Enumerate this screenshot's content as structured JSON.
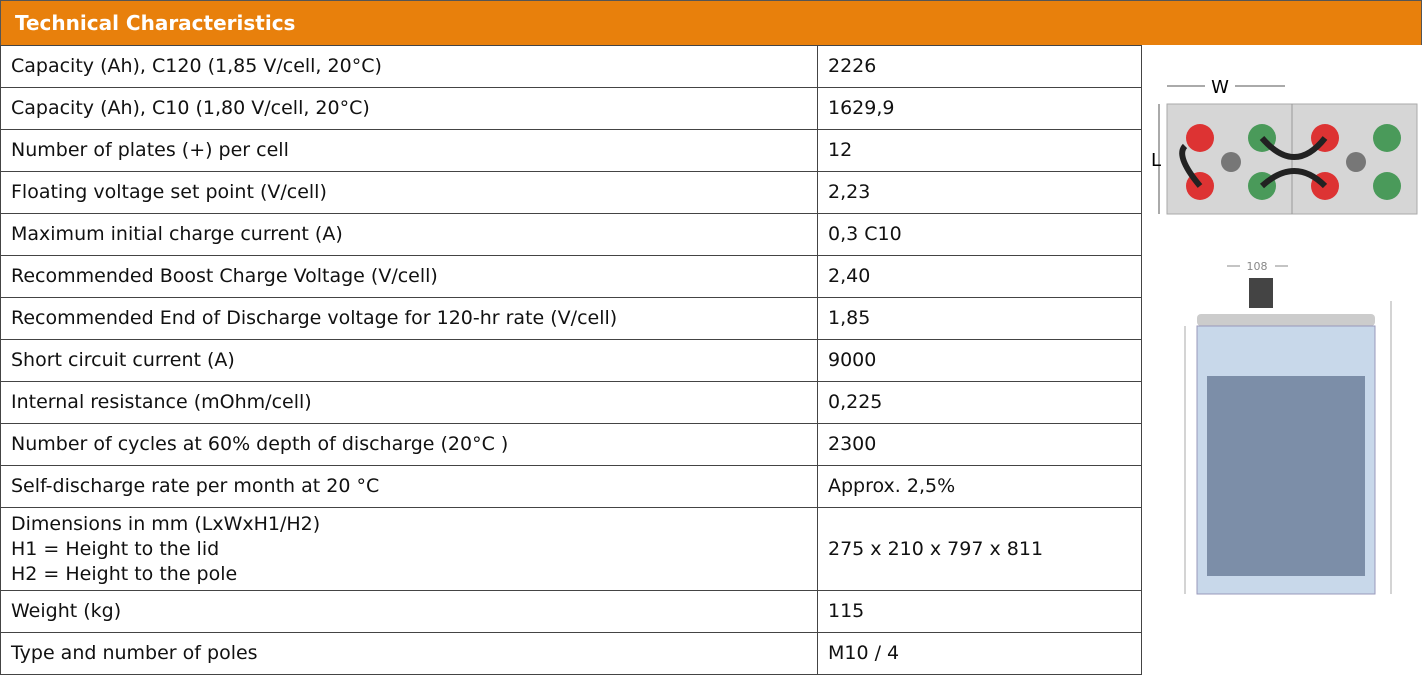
{
  "header": {
    "title": "Technical Characteristics"
  },
  "table": {
    "rows": [
      [
        "Capacity (Ah), C120 (1,85 V/cell, 20°C)",
        "2226"
      ],
      [
        "Capacity (Ah),  C10 (1,80 V/cell, 20°C)",
        "1629,9"
      ],
      [
        "Number of plates (+) per cell",
        "12"
      ],
      [
        "Floating voltage set point (V/cell)",
        "2,23"
      ],
      [
        "Maximum initial charge current (A)",
        "0,3 C10"
      ],
      [
        "Recommended Boost Charge Voltage (V/cell)",
        "2,40"
      ],
      [
        "Recommended End of Discharge voltage for 120-hr rate (V/cell)",
        "1,85"
      ],
      [
        "Short circuit current (A)",
        "9000"
      ],
      [
        "Internal resistance (mOhm/cell)",
        "0,225"
      ],
      [
        "Number of cycles at 60% depth of discharge (20°C )",
        "2300"
      ],
      [
        "Self-discharge rate per month at 20 °C",
        "Approx. 2,5%"
      ],
      [
        "Dimensions in mm (LxWxH1/H2)\nH1 = Height to the lid\nH2 = Height to the pole",
        "275 x 210 x 797 x 811"
      ],
      [
        "Weight (kg)",
        "115"
      ],
      [
        "Type and number of poles",
        "M10 / 4"
      ]
    ]
  },
  "diagram": {
    "width_label": "W",
    "length_label": "L",
    "pole_label": "108"
  }
}
